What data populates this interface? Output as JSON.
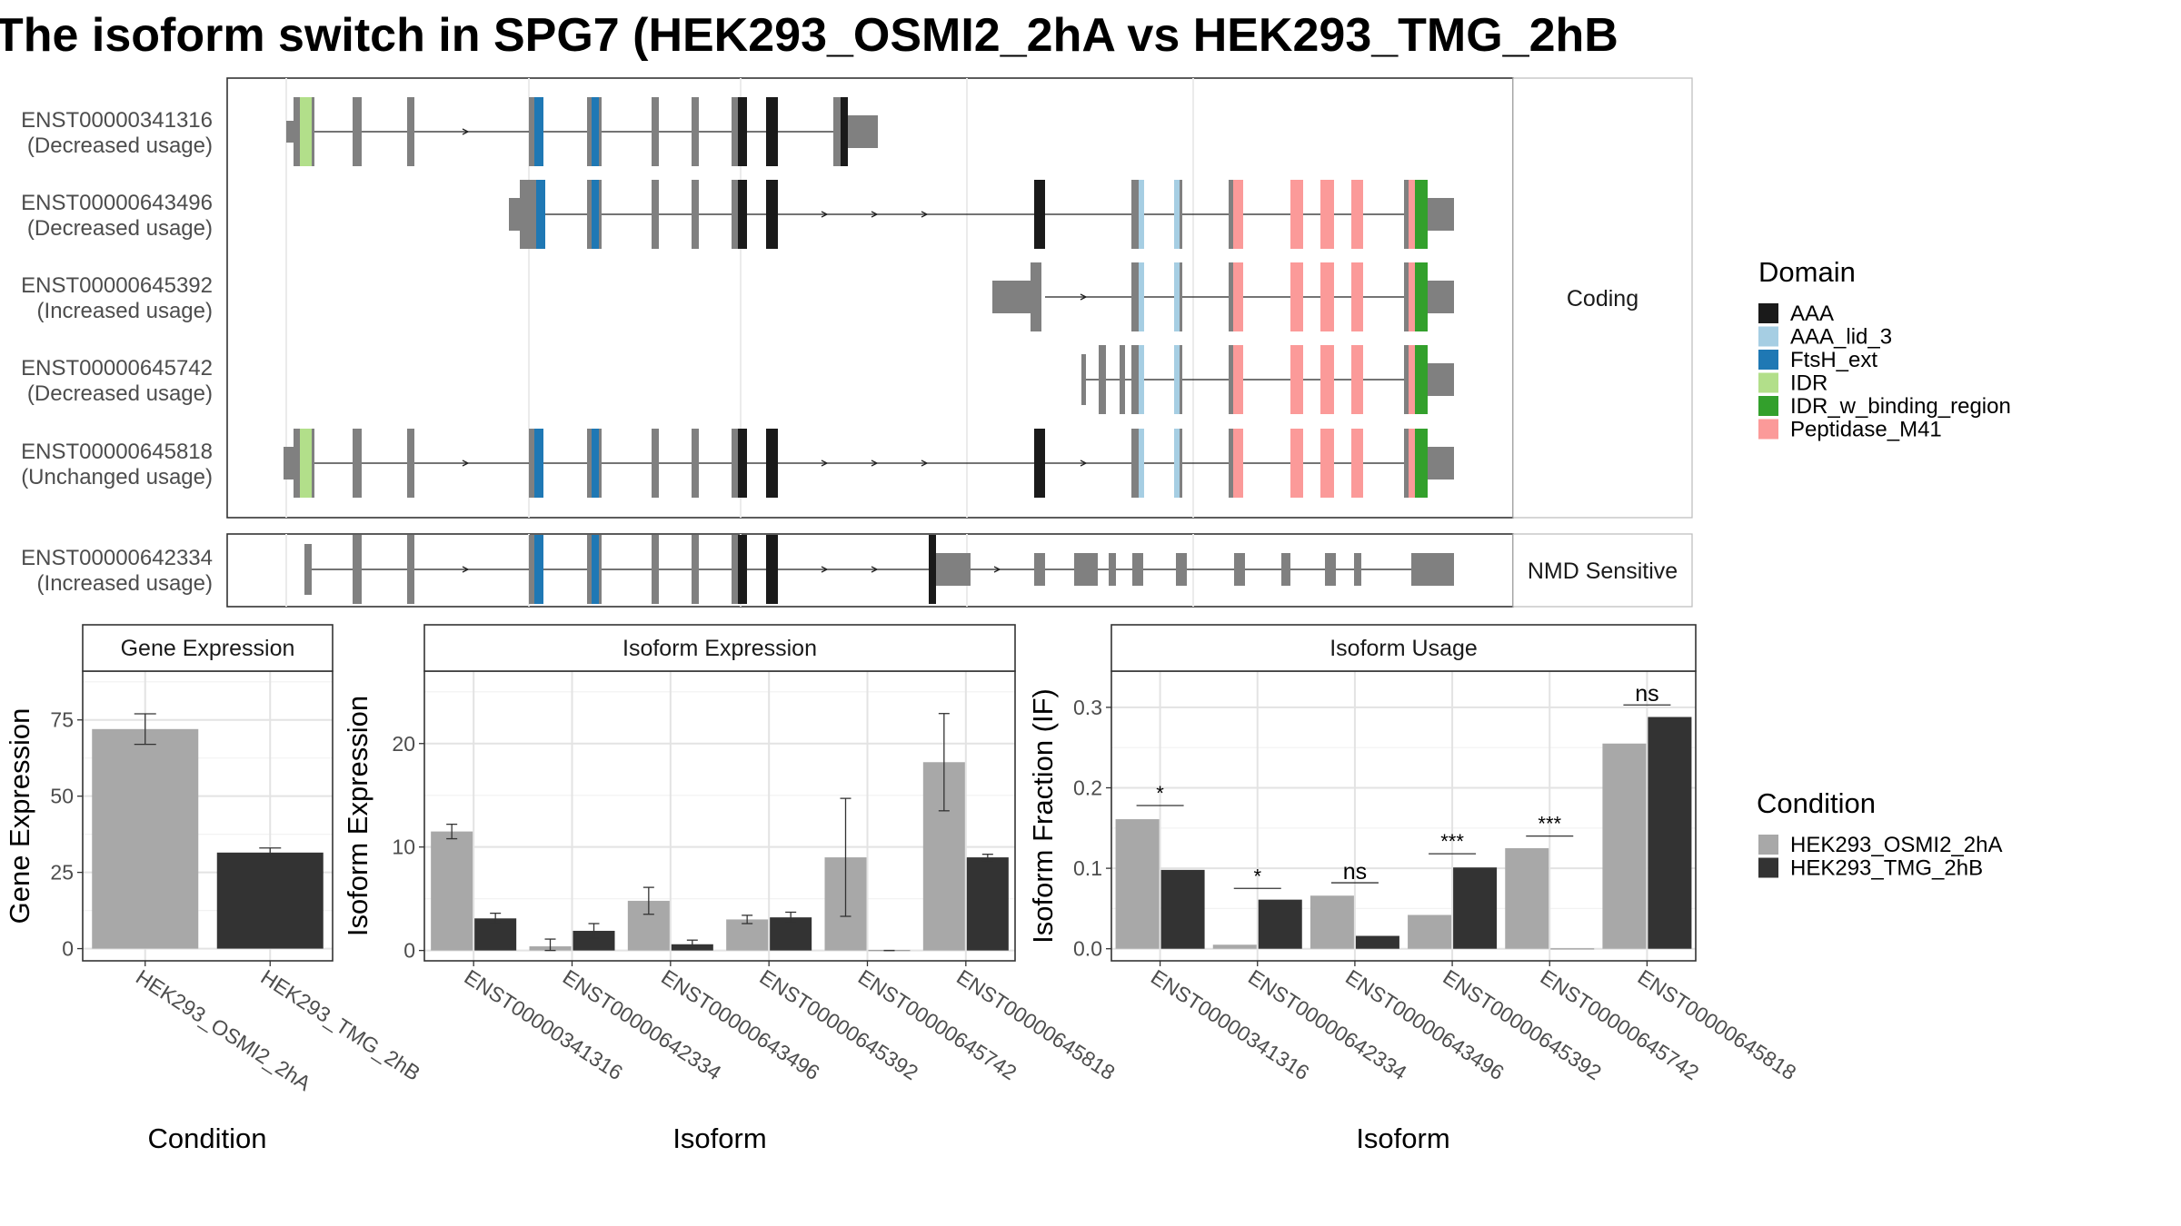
{
  "title": "The isoform switch in SPG7 (HEK293_OSMI2_2hA vs HEK293_TMG_2hB",
  "colors": {
    "cond1": "#a8a8a8",
    "cond2": "#333333",
    "exon": "#808080",
    "domains": {
      "AAA": "#1a1a1a",
      "AAA_lid_3": "#a6cee3",
      "FtsH_ext": "#1f78b4",
      "IDR": "#b2df8a",
      "IDR_w_binding_region": "#33a02c",
      "Peptidase_M41": "#fb9a99"
    }
  },
  "structure": {
    "panels": [
      {
        "label": "Coding",
        "transcripts": [
          {
            "id": "ENST00000341316",
            "usage": "(Decreased usage)"
          },
          {
            "id": "ENST00000643496",
            "usage": "(Decreased usage)"
          },
          {
            "id": "ENST00000645392",
            "usage": "(Increased usage)"
          },
          {
            "id": "ENST00000645742",
            "usage": "(Decreased usage)"
          },
          {
            "id": "ENST00000645818",
            "usage": "(Unchanged usage)"
          }
        ]
      },
      {
        "label": "NMD Sensitive",
        "transcripts": [
          {
            "id": "ENST00000642334",
            "usage": "(Increased usage)"
          }
        ]
      }
    ]
  },
  "legend_domain": {
    "title": "Domain",
    "items": [
      "AAA",
      "AAA_lid_3",
      "FtsH_ext",
      "IDR",
      "IDR_w_binding_region",
      "Peptidase_M41"
    ]
  },
  "legend_condition": {
    "title": "Condition",
    "items": [
      "HEK293_OSMI2_2hA",
      "HEK293_TMG_2hB"
    ]
  },
  "chart_data": [
    {
      "type": "bar",
      "title": "Gene Expression",
      "xlabel": "Condition",
      "ylabel": "Gene Expression",
      "categories": [
        "HEK293_OSMI2_2hA",
        "HEK293_TMG_2hB"
      ],
      "values": [
        72,
        31.5
      ],
      "err_low": [
        67,
        30
      ],
      "err_high": [
        77,
        33
      ],
      "ylim": [
        -4,
        91
      ],
      "yticks": [
        0,
        25,
        50,
        75
      ]
    },
    {
      "type": "bar",
      "title": "Isoform Expression",
      "xlabel": "Isoform",
      "ylabel": "Isoform Expression",
      "categories": [
        "ENST00000341316",
        "ENST00000642334",
        "ENST00000643496",
        "ENST00000645392",
        "ENST00000645742",
        "ENST00000645818"
      ],
      "series": [
        {
          "name": "HEK293_OSMI2_2hA",
          "values": [
            11.5,
            0.4,
            4.8,
            3.0,
            9.0,
            18.2
          ],
          "err_low": [
            10.8,
            0.0,
            3.5,
            2.6,
            3.3,
            13.5
          ],
          "err_high": [
            12.2,
            1.1,
            6.1,
            3.4,
            14.7,
            22.9
          ]
        },
        {
          "name": "HEK293_TMG_2hB",
          "values": [
            3.1,
            1.9,
            0.6,
            3.2,
            0.0,
            9.0
          ],
          "err_low": [
            2.6,
            1.2,
            0.2,
            2.7,
            0.0,
            8.7
          ],
          "err_high": [
            3.6,
            2.6,
            1.0,
            3.7,
            0.0,
            9.3
          ]
        }
      ],
      "ylim": [
        -1,
        27
      ],
      "yticks": [
        0,
        10,
        20
      ]
    },
    {
      "type": "bar",
      "title": "Isoform Usage",
      "xlabel": "Isoform",
      "ylabel": "Isoform Fraction (IF)",
      "categories": [
        "ENST00000341316",
        "ENST00000642334",
        "ENST00000643496",
        "ENST00000645392",
        "ENST00000645742",
        "ENST00000645818"
      ],
      "series": [
        {
          "name": "HEK293_OSMI2_2hA",
          "values": [
            0.161,
            0.005,
            0.066,
            0.042,
            0.125,
            0.255
          ]
        },
        {
          "name": "HEK293_TMG_2hB",
          "values": [
            0.098,
            0.061,
            0.016,
            0.101,
            0.0,
            0.288
          ]
        }
      ],
      "significance": [
        "*",
        "*",
        "ns",
        "***",
        "***",
        "ns"
      ],
      "sig_level": [
        0.178,
        0.075,
        0.082,
        0.118,
        0.14,
        0.303
      ],
      "ylim": [
        -0.015,
        0.345
      ],
      "yticks": [
        0.0,
        0.1,
        0.2,
        0.3
      ],
      "ytick_labels": [
        "0.0",
        "0.1",
        "0.2",
        "0.3"
      ]
    }
  ]
}
